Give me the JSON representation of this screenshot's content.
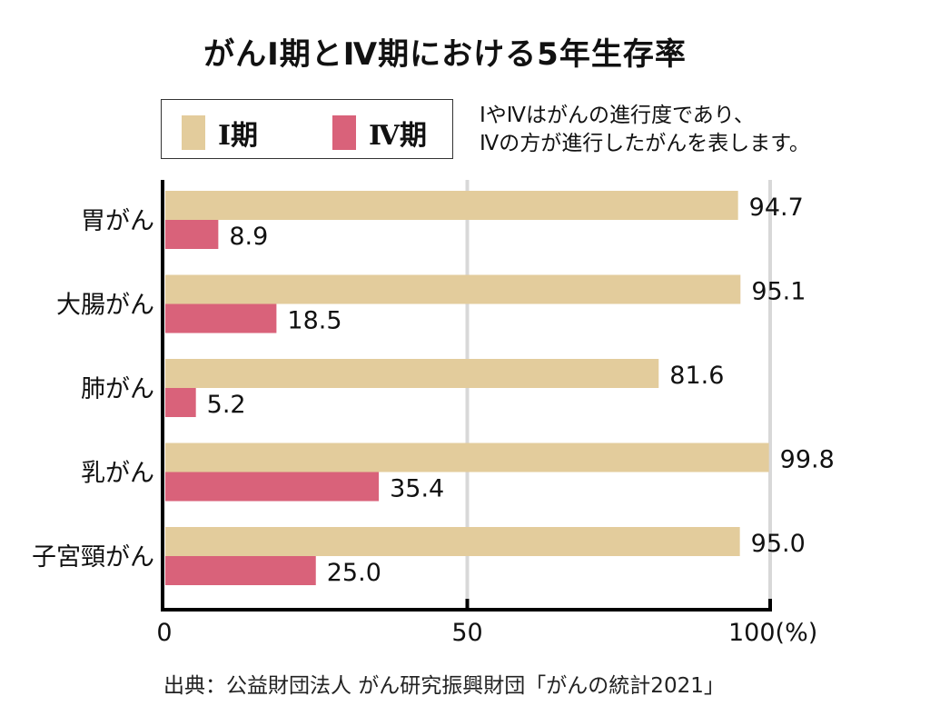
{
  "colors": {
    "stage1": "#e3cc9c",
    "stage4": "#d9627a",
    "axis": "#000000",
    "grid": "#d8d8d8"
  },
  "legend": {
    "items": [
      {
        "label": "Ⅰ期",
        "series": "stage1"
      },
      {
        "label": "Ⅳ期",
        "series": "stage4"
      }
    ]
  },
  "note": {
    "lines": [
      "ⅠやⅣはがんの進行度であり、",
      "Ⅳの方が進行したがんを表します。"
    ]
  },
  "source": "出典：公益財団法人 がん研究振興財団「がんの統計2021」",
  "chart_data": {
    "type": "bar",
    "orientation": "horizontal",
    "title": "がんⅠ期とⅣ期における5年生存率",
    "categories": [
      "胃がん",
      "大腸がん",
      "肺がん",
      "乳がん",
      "子宮頸がん"
    ],
    "series": [
      {
        "name": "Ⅰ期",
        "key": "stage1",
        "values": [
          94.7,
          95.1,
          81.6,
          99.8,
          95.0
        ],
        "labels": [
          "94.7",
          "95.1",
          "81.6",
          "99.8",
          "95.0"
        ]
      },
      {
        "name": "Ⅳ期",
        "key": "stage4",
        "values": [
          8.9,
          18.5,
          5.2,
          35.4,
          25.0
        ],
        "labels": [
          "8.9",
          "18.5",
          "5.2",
          "35.4",
          "25.0"
        ]
      }
    ],
    "xlabel": "",
    "ylabel": "",
    "xlim": [
      0,
      100
    ],
    "x_ticks": [
      0,
      50,
      100
    ],
    "x_tick_labels": [
      "0",
      "50",
      "100(%)"
    ],
    "grid": "vertical at 50 and 100",
    "legend_position": "top-left"
  }
}
